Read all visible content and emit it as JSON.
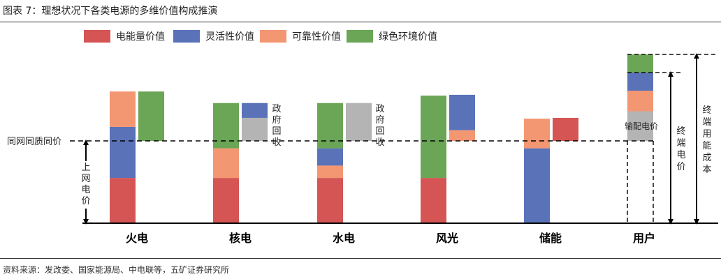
{
  "title": "图表 7：理想状况下各类电源的多维价值构成推演",
  "source": "资料来源：发改委、国家能源局、中电联等，五矿证券研究所",
  "chart_data": {
    "type": "bar",
    "stacked": true,
    "legend_position": "top",
    "categories": [
      "火电",
      "核电",
      "水电",
      "风光",
      "储能",
      "用户"
    ],
    "legend": [
      {
        "name": "电能量价值",
        "color": "#D55454"
      },
      {
        "name": "灵活性价值",
        "color": "#5A72B8"
      },
      {
        "name": "可靠性价值",
        "color": "#F39672"
      },
      {
        "name": "绿色环境价值",
        "color": "#6BA556"
      }
    ],
    "reference_lines": {
      "benchmark_label": "同网同质同价",
      "benchmark_level": 1.0
    },
    "labels": {
      "grid_price": "上网电价",
      "gov_recovery": "政府回收",
      "transmission": "输配电价",
      "terminal_price": "终端电价",
      "terminal_cost": "终端用能成本"
    },
    "bars": [
      {
        "category": "火电",
        "stack": [
          {
            "component": "电能量价值",
            "value": 0.55
          },
          {
            "component": "灵活性价值",
            "value": 0.62
          },
          {
            "component": "可靠性价值",
            "value": 0.43
          }
        ]
      },
      {
        "category": "火电",
        "stack": [
          {
            "component": "绿色环境价值",
            "base": 1.0,
            "value": 0.6
          }
        ]
      },
      {
        "category": "核电",
        "stack": [
          {
            "component": "电能量价值",
            "value": 0.55
          },
          {
            "component": "可靠性价值",
            "value": 0.36
          },
          {
            "component": "绿色环境价值",
            "value": 0.55
          }
        ]
      },
      {
        "category": "核电",
        "stack": [
          {
            "component": "政府回收",
            "base": 1.0,
            "value": 0.28
          },
          {
            "component": "灵活性价值",
            "value": 0.18
          }
        ]
      },
      {
        "category": "水电",
        "stack": [
          {
            "component": "电能量价值",
            "value": 0.55
          },
          {
            "component": "可靠性价值",
            "value": 0.15
          },
          {
            "component": "灵活性价值",
            "value": 0.21
          },
          {
            "component": "绿色环境价值",
            "value": 0.55
          }
        ]
      },
      {
        "category": "水电",
        "stack": [
          {
            "component": "政府回收",
            "base": 1.0,
            "value": 0.46
          }
        ]
      },
      {
        "category": "风光",
        "stack": [
          {
            "component": "电能量价值",
            "value": 0.55
          },
          {
            "component": "绿色环境价值",
            "value": 1.0
          }
        ]
      },
      {
        "category": "风光",
        "stack": [
          {
            "component": "可靠性价值",
            "base": 1.0,
            "value": 0.13
          },
          {
            "component": "灵活性价值",
            "value": 0.43
          }
        ]
      },
      {
        "category": "储能",
        "stack": [
          {
            "component": "灵活性价值",
            "value": 0.91
          },
          {
            "component": "可靠性价值",
            "value": 0.36
          }
        ]
      },
      {
        "category": "储能",
        "stack": [
          {
            "component": "电能量价值",
            "base": 1.0,
            "value": 0.28
          }
        ]
      },
      {
        "category": "用户",
        "stack": [
          {
            "component": "输配电价",
            "base": 1.0,
            "value": 0.36
          },
          {
            "component": "可靠性价值",
            "value": 0.25
          },
          {
            "component": "灵活性价值",
            "value": 0.22
          },
          {
            "component": "绿色环境价值",
            "value": 0.22
          }
        ]
      }
    ]
  }
}
